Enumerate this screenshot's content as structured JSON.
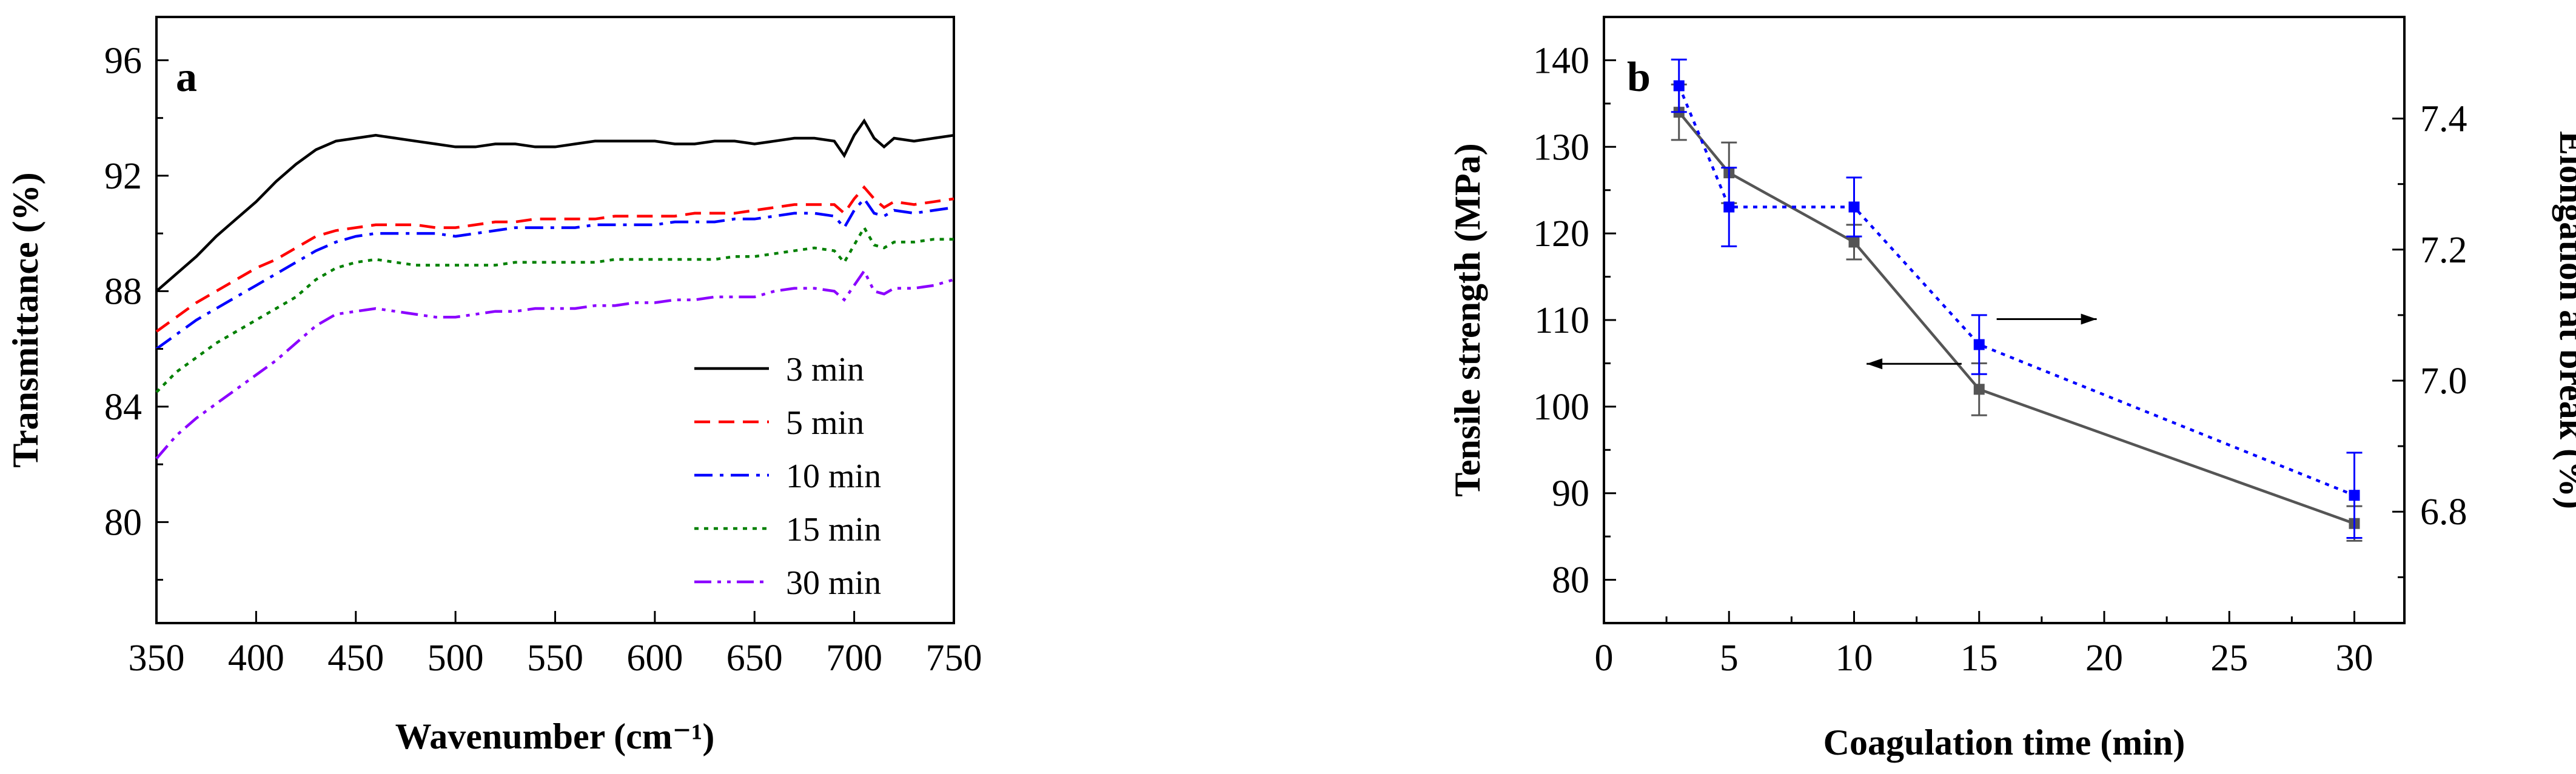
{
  "chart_data": [
    {
      "panel_label": "a",
      "type": "line",
      "xlabel": "Wavenumber (cm⁻¹)",
      "ylabel": "Transmittance (%)",
      "xlim": [
        350,
        750
      ],
      "ylim": [
        76.5,
        97.5
      ],
      "xticks": [
        350,
        400,
        450,
        500,
        550,
        600,
        650,
        700,
        750
      ],
      "yticks": [
        80,
        84,
        88,
        92,
        96
      ],
      "grid": false,
      "legend_position": "bottom-right",
      "series": [
        {
          "name": "3 min",
          "color": "#000000",
          "dash": "solid",
          "x": [
            350,
            360,
            370,
            380,
            390,
            400,
            410,
            420,
            430,
            440,
            450,
            460,
            470,
            480,
            490,
            500,
            510,
            520,
            530,
            540,
            550,
            560,
            570,
            580,
            590,
            600,
            610,
            620,
            630,
            640,
            650,
            660,
            670,
            680,
            690,
            695,
            700,
            705,
            710,
            715,
            720,
            730,
            740,
            750
          ],
          "y": [
            88.0,
            88.6,
            89.2,
            89.9,
            90.5,
            91.1,
            91.8,
            92.4,
            92.9,
            93.2,
            93.3,
            93.4,
            93.3,
            93.2,
            93.1,
            93.0,
            93.0,
            93.1,
            93.1,
            93.0,
            93.0,
            93.1,
            93.2,
            93.2,
            93.2,
            93.2,
            93.1,
            93.1,
            93.2,
            93.2,
            93.1,
            93.2,
            93.3,
            93.3,
            93.2,
            92.7,
            93.4,
            93.9,
            93.3,
            93.0,
            93.3,
            93.2,
            93.3,
            93.4
          ]
        },
        {
          "name": "5 min",
          "color": "#ff0000",
          "dash": "dashed",
          "x": [
            350,
            360,
            370,
            380,
            390,
            400,
            410,
            420,
            430,
            440,
            450,
            460,
            470,
            480,
            490,
            500,
            510,
            520,
            530,
            540,
            550,
            560,
            570,
            580,
            590,
            600,
            610,
            620,
            630,
            640,
            650,
            660,
            670,
            680,
            690,
            695,
            700,
            705,
            710,
            715,
            720,
            730,
            740,
            750
          ],
          "y": [
            86.6,
            87.1,
            87.6,
            88.0,
            88.4,
            88.8,
            89.1,
            89.5,
            89.9,
            90.1,
            90.2,
            90.3,
            90.3,
            90.3,
            90.2,
            90.2,
            90.3,
            90.4,
            90.4,
            90.5,
            90.5,
            90.5,
            90.5,
            90.6,
            90.6,
            90.6,
            90.6,
            90.7,
            90.7,
            90.7,
            90.8,
            90.9,
            91.0,
            91.0,
            91.0,
            90.7,
            91.2,
            91.6,
            91.2,
            90.9,
            91.1,
            91.0,
            91.1,
            91.2
          ]
        },
        {
          "name": "10 min",
          "color": "#0000ff",
          "dash": "dashdot",
          "x": [
            350,
            360,
            370,
            380,
            390,
            400,
            410,
            420,
            430,
            440,
            450,
            460,
            470,
            480,
            490,
            500,
            510,
            520,
            530,
            540,
            550,
            560,
            570,
            580,
            590,
            600,
            610,
            620,
            630,
            640,
            650,
            660,
            670,
            680,
            690,
            695,
            700,
            705,
            710,
            715,
            720,
            730,
            740,
            750
          ],
          "y": [
            86.0,
            86.5,
            87.0,
            87.4,
            87.8,
            88.2,
            88.6,
            89.0,
            89.4,
            89.7,
            89.9,
            90.0,
            90.0,
            90.0,
            90.0,
            89.9,
            90.0,
            90.1,
            90.2,
            90.2,
            90.2,
            90.2,
            90.3,
            90.3,
            90.3,
            90.3,
            90.4,
            90.4,
            90.4,
            90.5,
            90.5,
            90.6,
            90.7,
            90.7,
            90.6,
            90.2,
            90.8,
            91.2,
            90.7,
            90.6,
            90.8,
            90.7,
            90.8,
            90.9
          ]
        },
        {
          "name": "15 min",
          "color": "#008000",
          "dash": "dotted",
          "x": [
            350,
            360,
            370,
            380,
            390,
            400,
            410,
            420,
            430,
            440,
            450,
            460,
            470,
            480,
            490,
            500,
            510,
            520,
            530,
            540,
            550,
            560,
            570,
            580,
            590,
            600,
            610,
            620,
            630,
            640,
            650,
            660,
            670,
            680,
            690,
            695,
            700,
            705,
            710,
            715,
            720,
            730,
            740,
            750
          ],
          "y": [
            84.5,
            85.2,
            85.7,
            86.2,
            86.6,
            87.0,
            87.4,
            87.8,
            88.4,
            88.8,
            89.0,
            89.1,
            89.0,
            88.9,
            88.9,
            88.9,
            88.9,
            88.9,
            89.0,
            89.0,
            89.0,
            89.0,
            89.0,
            89.1,
            89.1,
            89.1,
            89.1,
            89.1,
            89.1,
            89.2,
            89.2,
            89.3,
            89.4,
            89.5,
            89.4,
            89.0,
            89.6,
            90.2,
            89.6,
            89.5,
            89.7,
            89.7,
            89.8,
            89.8
          ]
        },
        {
          "name": "30 min",
          "color": "#8b00ff",
          "dash": "dashdotdot",
          "x": [
            350,
            360,
            370,
            380,
            390,
            400,
            410,
            420,
            430,
            440,
            450,
            460,
            470,
            480,
            490,
            500,
            510,
            520,
            530,
            540,
            550,
            560,
            570,
            580,
            590,
            600,
            610,
            620,
            630,
            640,
            650,
            660,
            670,
            680,
            690,
            695,
            700,
            705,
            710,
            715,
            720,
            730,
            740,
            750
          ],
          "y": [
            82.2,
            83.0,
            83.6,
            84.1,
            84.6,
            85.1,
            85.6,
            86.2,
            86.8,
            87.2,
            87.3,
            87.4,
            87.3,
            87.2,
            87.1,
            87.1,
            87.2,
            87.3,
            87.3,
            87.4,
            87.4,
            87.4,
            87.5,
            87.5,
            87.6,
            87.6,
            87.7,
            87.7,
            87.8,
            87.8,
            87.8,
            88.0,
            88.1,
            88.1,
            88.0,
            87.7,
            88.2,
            88.7,
            88.0,
            87.9,
            88.1,
            88.1,
            88.2,
            88.4
          ]
        }
      ]
    },
    {
      "panel_label": "b",
      "type": "line",
      "xlabel": "Coagulation time (min)",
      "ylabel": "Tensile strength (MPa)",
      "y2label": "Elongation at break (%)",
      "xlim": [
        0,
        32
      ],
      "ylim": [
        75,
        145
      ],
      "y2lim": [
        6.63,
        7.555
      ],
      "xticks": [
        0,
        5,
        10,
        15,
        20,
        25,
        30
      ],
      "yticks": [
        80,
        90,
        100,
        110,
        120,
        130,
        140
      ],
      "y2ticks": [
        6.8,
        7.0,
        7.2,
        7.4
      ],
      "grid": false,
      "series": [
        {
          "axis": "left",
          "color": "#555555",
          "dash": "solid",
          "marker": "square",
          "x": [
            3,
            5,
            10,
            15,
            30
          ],
          "y": [
            134,
            127,
            119,
            102,
            86.5
          ],
          "error": [
            3.2,
            3.5,
            2.0,
            3.0,
            2.0
          ]
        },
        {
          "axis": "right",
          "color": "#0000ff",
          "dash": "dotted",
          "marker": "square",
          "x": [
            3,
            5,
            10,
            15,
            30
          ],
          "y": [
            7.45,
            7.265,
            7.265,
            7.055,
            6.825
          ],
          "error": [
            0.04,
            0.06,
            0.045,
            0.045,
            0.065
          ]
        }
      ],
      "annotations": [
        {
          "type": "arrow",
          "direction": "left",
          "target_axis": "left",
          "at": {
            "x": [
              10.5,
              14.3
            ],
            "y": 102
          }
        },
        {
          "type": "arrow",
          "direction": "right",
          "target_axis": "right",
          "at": {
            "x": [
              15.7,
              19.7
            ],
            "y": 7.055
          }
        }
      ]
    }
  ]
}
